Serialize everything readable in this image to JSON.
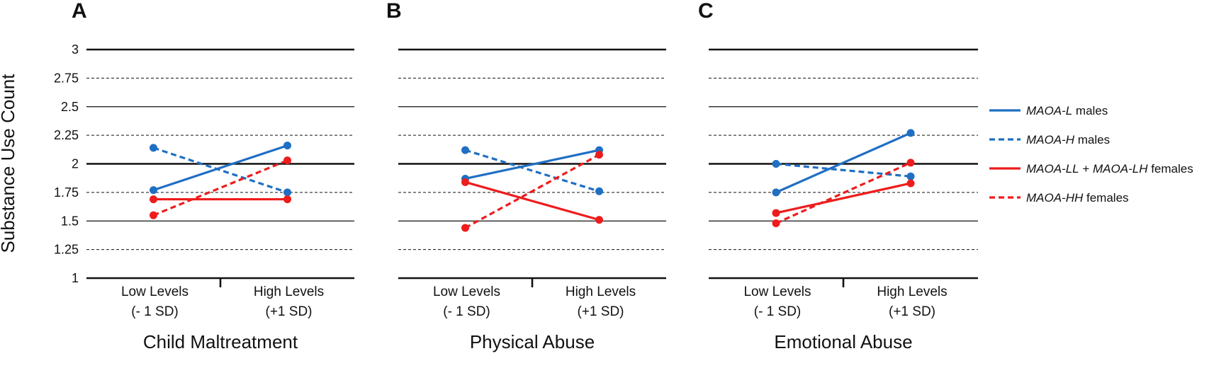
{
  "ylabel": "Substance Use Count",
  "colors": {
    "blue": "#1f6fc3",
    "red": "#ee1c1c",
    "axis": "#111111"
  },
  "legend": [
    {
      "italic": "MAOA-L",
      "rest": " males",
      "color": "#1f6fc3",
      "dashed": false
    },
    {
      "italic": "MAOA-H",
      "rest": " males",
      "color": "#1f6fc3",
      "dashed": true
    },
    {
      "italic": "MAOA-LL",
      "mid": " + ",
      "italic2": "MAOA-LH",
      "rest": " females",
      "color": "#ee1c1c",
      "dashed": false
    },
    {
      "italic": "MAOA-HH",
      "rest": " females",
      "color": "#ee1c1c",
      "dashed": true
    }
  ],
  "chart_data": [
    {
      "type": "line",
      "panel": "A",
      "title": "Child Maltreatment",
      "xlabel": "Child Maltreatment",
      "ylabel": "Substance Use Count",
      "categories": [
        [
          "Low Levels",
          "(- 1 SD)"
        ],
        [
          "High Levels",
          "(+1 SD)"
        ]
      ],
      "yticks": [
        "1",
        "1.25",
        "1.5",
        "1.75",
        "2",
        "2.25",
        "2.5",
        "2.75",
        "3"
      ],
      "ylim": [
        1,
        3
      ],
      "series": [
        {
          "name": "MAOA-L males",
          "values": [
            1.77,
            2.16
          ],
          "color": "#1f6fc3",
          "dashed": false
        },
        {
          "name": "MAOA-H males",
          "values": [
            2.14,
            1.75
          ],
          "color": "#1f6fc3",
          "dashed": true
        },
        {
          "name": "MAOA-LL + MAOA-LH females",
          "values": [
            1.69,
            1.69
          ],
          "color": "#ee1c1c",
          "dashed": false
        },
        {
          "name": "MAOA-HH females",
          "values": [
            1.55,
            2.03
          ],
          "color": "#ee1c1c",
          "dashed": true
        }
      ]
    },
    {
      "type": "line",
      "panel": "B",
      "title": "Physical Abuse",
      "xlabel": "Physical Abuse",
      "categories": [
        [
          "Low Levels",
          "(- 1 SD)"
        ],
        [
          "High Levels",
          "(+1 SD)"
        ]
      ],
      "ylim": [
        1,
        3
      ],
      "series": [
        {
          "name": "MAOA-L males",
          "values": [
            1.87,
            2.12
          ],
          "color": "#1f6fc3",
          "dashed": false
        },
        {
          "name": "MAOA-H males",
          "values": [
            2.12,
            1.76
          ],
          "color": "#1f6fc3",
          "dashed": true
        },
        {
          "name": "MAOA-LL + MAOA-LH females",
          "values": [
            1.84,
            1.51
          ],
          "color": "#ee1c1c",
          "dashed": false
        },
        {
          "name": "MAOA-HH females",
          "values": [
            1.44,
            2.08
          ],
          "color": "#ee1c1c",
          "dashed": true
        }
      ]
    },
    {
      "type": "line",
      "panel": "C",
      "title": "Emotional Abuse",
      "xlabel": "Emotional Abuse",
      "categories": [
        [
          "Low Levels",
          "(- 1 SD)"
        ],
        [
          "High Levels",
          "(+1 SD)"
        ]
      ],
      "ylim": [
        1,
        3
      ],
      "series": [
        {
          "name": "MAOA-L males",
          "values": [
            1.75,
            2.27
          ],
          "color": "#1f6fc3",
          "dashed": false
        },
        {
          "name": "MAOA-H males",
          "values": [
            2.0,
            1.89
          ],
          "color": "#1f6fc3",
          "dashed": true
        },
        {
          "name": "MAOA-LL + MAOA-LH females",
          "values": [
            1.57,
            1.83
          ],
          "color": "#ee1c1c",
          "dashed": false
        },
        {
          "name": "MAOA-HH females",
          "values": [
            1.48,
            2.01
          ],
          "color": "#ee1c1c",
          "dashed": true
        }
      ]
    }
  ]
}
